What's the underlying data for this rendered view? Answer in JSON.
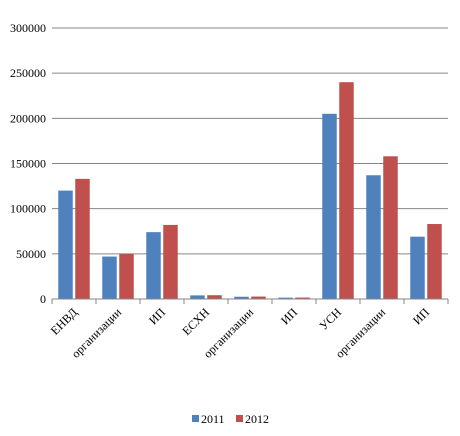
{
  "chart_data": {
    "type": "bar",
    "title": "",
    "xlabel": "",
    "ylabel": "",
    "categories": [
      "ЕНВД",
      "организации",
      "ИП",
      "ЕСХН",
      "организации",
      "ИП",
      "УСН",
      "организации",
      "ИП"
    ],
    "series": [
      {
        "name": "2011",
        "color": "#4f81bd",
        "values": [
          120000,
          47000,
          74000,
          4000,
          2500,
          1500,
          205000,
          137000,
          69000
        ]
      },
      {
        "name": "2012",
        "color": "#c0504d",
        "values": [
          133000,
          50000,
          82000,
          4200,
          2700,
          1600,
          240000,
          158000,
          83000
        ]
      }
    ],
    "ylim": [
      0,
      300000
    ],
    "yticks": [
      "0",
      "50000",
      "100000",
      "150000",
      "200000",
      "250000",
      "300000"
    ],
    "grid": true,
    "legend_position": "bottom"
  }
}
